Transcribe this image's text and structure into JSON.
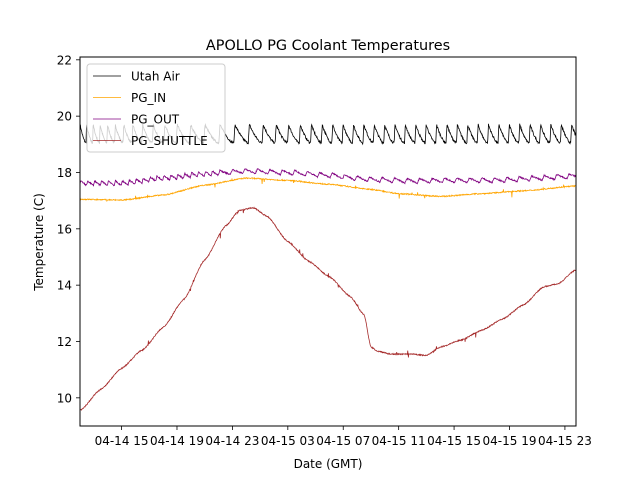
{
  "chart_data": {
    "type": "line",
    "title": "APOLLO PG Coolant Temperatures",
    "xlabel": "Date (GMT)",
    "ylabel": "Temperature (C)",
    "x_unit": "hours since 04-14 12:00 GMT",
    "xlim": [
      0,
      35.8
    ],
    "ylim": [
      9.0,
      22.1
    ],
    "grid": false,
    "legend_position": "top-left",
    "x_ticks": [
      {
        "value": 3,
        "label": "04-14 15"
      },
      {
        "value": 7,
        "label": "04-14 19"
      },
      {
        "value": 11,
        "label": "04-14 23"
      },
      {
        "value": 15,
        "label": "04-15 03"
      },
      {
        "value": 19,
        "label": "04-15 07"
      },
      {
        "value": 23,
        "label": "04-15 11"
      },
      {
        "value": 27,
        "label": "04-15 15"
      },
      {
        "value": 31,
        "label": "04-15 19"
      },
      {
        "value": 35,
        "label": "04-15 23"
      }
    ],
    "y_ticks": [
      {
        "value": 10,
        "label": "10"
      },
      {
        "value": 12,
        "label": "12"
      },
      {
        "value": 14,
        "label": "14"
      },
      {
        "value": 16,
        "label": "16"
      },
      {
        "value": 18,
        "label": "18"
      },
      {
        "value": 20,
        "label": "20"
      },
      {
        "value": 22,
        "label": "22"
      }
    ],
    "series": [
      {
        "name": "Utah Air",
        "color": "#000000",
        "pattern": "sawtooth",
        "base_points": [
          [
            0,
            19.05
          ],
          [
            10,
            19.05
          ],
          [
            20,
            19.05
          ],
          [
            35.8,
            19.05
          ]
        ],
        "amplitude": 0.65,
        "periods": [
          [
            0,
            0.45
          ],
          [
            10,
            1.1
          ],
          [
            18,
            0.75
          ],
          [
            35.8,
            0.75
          ]
        ]
      },
      {
        "name": "PG_IN",
        "color": "#ffa500",
        "points": [
          [
            0,
            17.05
          ],
          [
            3,
            17.02
          ],
          [
            6,
            17.2
          ],
          [
            9,
            17.55
          ],
          [
            12,
            17.8
          ],
          [
            15,
            17.72
          ],
          [
            18,
            17.58
          ],
          [
            21,
            17.4
          ],
          [
            23,
            17.25
          ],
          [
            26,
            17.15
          ],
          [
            29,
            17.25
          ],
          [
            32,
            17.35
          ],
          [
            35.8,
            17.52
          ]
        ]
      },
      {
        "name": "PG_OUT",
        "color": "#800080",
        "pattern": "wavy",
        "points": [
          [
            0,
            17.62
          ],
          [
            3,
            17.62
          ],
          [
            6,
            17.8
          ],
          [
            9,
            17.95
          ],
          [
            12,
            18.05
          ],
          [
            15,
            18.0
          ],
          [
            18,
            17.9
          ],
          [
            21,
            17.75
          ],
          [
            24,
            17.7
          ],
          [
            27,
            17.72
          ],
          [
            30,
            17.72
          ],
          [
            33,
            17.8
          ],
          [
            35.8,
            17.88
          ]
        ],
        "amplitude": 0.17
      },
      {
        "name": "PG_SHUTTLE",
        "color": "#a52a2a",
        "points": [
          [
            0,
            9.55
          ],
          [
            1.5,
            10.3
          ],
          [
            3,
            11.05
          ],
          [
            4.5,
            11.7
          ],
          [
            6,
            12.5
          ],
          [
            7.5,
            13.5
          ],
          [
            9,
            14.9
          ],
          [
            10.5,
            16.1
          ],
          [
            11.5,
            16.65
          ],
          [
            12.5,
            16.75
          ],
          [
            13.5,
            16.45
          ],
          [
            15,
            15.55
          ],
          [
            16.5,
            14.85
          ],
          [
            18,
            14.3
          ],
          [
            19.5,
            13.6
          ],
          [
            20.5,
            12.95
          ],
          [
            21,
            11.8
          ],
          [
            21.5,
            11.65
          ],
          [
            22.5,
            11.55
          ],
          [
            24,
            11.55
          ],
          [
            25,
            11.5
          ],
          [
            26,
            11.8
          ],
          [
            27.5,
            12.05
          ],
          [
            29,
            12.4
          ],
          [
            30.5,
            12.8
          ],
          [
            32,
            13.3
          ],
          [
            33.5,
            13.95
          ],
          [
            34.5,
            14.05
          ],
          [
            35.8,
            14.55
          ]
        ]
      }
    ]
  }
}
